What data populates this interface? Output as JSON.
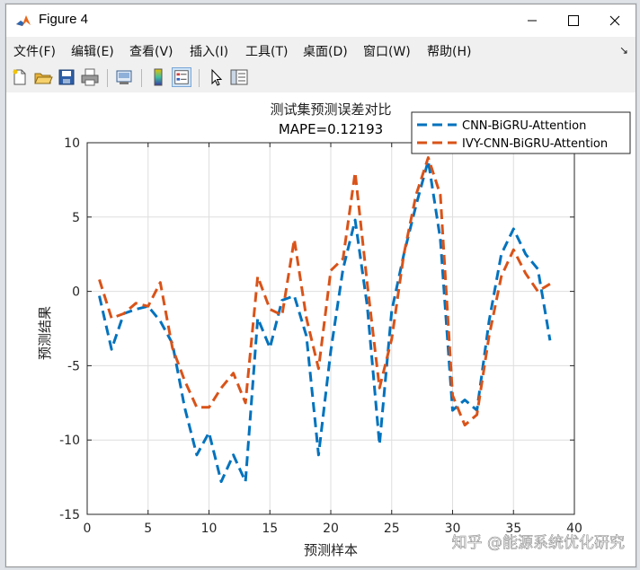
{
  "window": {
    "title": "Figure 4"
  },
  "menu": [
    "文件(F)",
    "编辑(E)",
    "查看(V)",
    "插入(I)",
    "工具(T)",
    "桌面(D)",
    "窗口(W)",
    "帮助(H)"
  ],
  "toolbar_icons": [
    "new-file-icon",
    "open-folder-icon",
    "save-icon",
    "print-icon",
    "print-preview-icon",
    "colorbar-icon",
    "legend-icon",
    "pointer-icon",
    "property-editor-icon"
  ],
  "watermark": "知乎 @能源系统优化研究",
  "chart_data": {
    "type": "line",
    "title": "测试集预测误差对比",
    "subtitle": "MAPE=0.12193",
    "xlabel": "预测样本",
    "ylabel": "预测结果",
    "xlim": [
      0,
      40
    ],
    "ylim": [
      -15,
      10
    ],
    "xticks": [
      0,
      5,
      10,
      15,
      20,
      25,
      30,
      35,
      40
    ],
    "yticks": [
      -15,
      -10,
      -5,
      0,
      5,
      10
    ],
    "grid": true,
    "legend_position": "top-right",
    "x": [
      1,
      2,
      3,
      4,
      5,
      6,
      7,
      8,
      9,
      10,
      11,
      12,
      13,
      14,
      15,
      16,
      17,
      18,
      19,
      20,
      21,
      22,
      23,
      24,
      25,
      26,
      27,
      28,
      29,
      30,
      31,
      32,
      33,
      34,
      35,
      36,
      37,
      38
    ],
    "series": [
      {
        "name": "CNN-BiGRU-Attention",
        "color": "#0072BD",
        "values": [
          -0.3,
          -3.9,
          -1.5,
          -1.2,
          -1.0,
          -2.0,
          -3.5,
          -7.8,
          -11.0,
          -9.5,
          -12.8,
          -11.0,
          -12.8,
          -1.8,
          -3.8,
          -0.6,
          -0.3,
          -3.0,
          -11.0,
          -4.0,
          1.5,
          4.8,
          -1.0,
          -10.3,
          -1.3,
          2.5,
          5.8,
          8.8,
          3.5,
          -8.0,
          -7.3,
          -8.0,
          -2.0,
          2.5,
          4.2,
          2.5,
          1.5,
          -3.3
        ]
      },
      {
        "name": "IVY-CNN-BiGRU-Attention",
        "color": "#D95319",
        "values": [
          0.8,
          -1.8,
          -1.5,
          -0.8,
          -1.0,
          0.6,
          -3.8,
          -6.0,
          -7.8,
          -7.8,
          -6.5,
          -5.5,
          -7.5,
          1.0,
          -1.2,
          -1.6,
          3.5,
          -1.8,
          -5.2,
          1.4,
          2.2,
          8.0,
          0.5,
          -6.5,
          -3.2,
          2.5,
          6.5,
          9.0,
          6.5,
          -7.0,
          -9.0,
          -8.3,
          -3.0,
          1.0,
          2.8,
          1.2,
          0.0,
          0.5
        ]
      }
    ]
  }
}
